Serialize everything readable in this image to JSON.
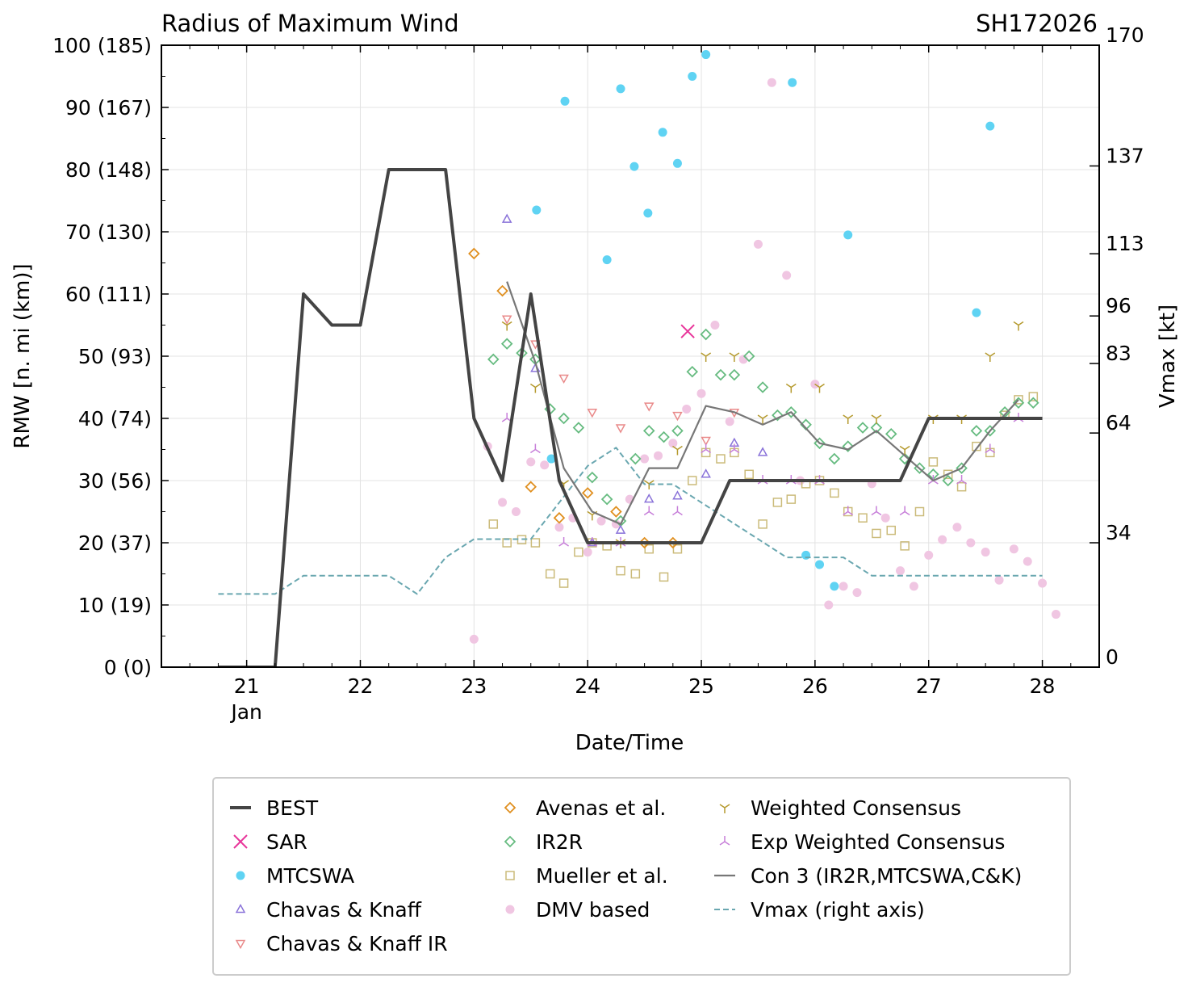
{
  "chart_data": {
    "type": "line",
    "title": "Radius of Maximum Wind",
    "storm_id": "SH172026",
    "xlabel": "Date/Time",
    "ylabel": "RMW [n. mi (km)]",
    "y2label": "Vmax [kt]",
    "xlim": [
      20.25,
      28.5
    ],
    "ylim": [
      0,
      100
    ],
    "y2lim": [
      0,
      170
    ],
    "x_ticks": [
      {
        "value": 21,
        "label": "21",
        "sub": "Jan"
      },
      {
        "value": 22,
        "label": "22",
        "sub": ""
      },
      {
        "value": 23,
        "label": "23",
        "sub": ""
      },
      {
        "value": 24,
        "label": "24",
        "sub": ""
      },
      {
        "value": 25,
        "label": "25",
        "sub": ""
      },
      {
        "value": 26,
        "label": "26",
        "sub": ""
      },
      {
        "value": 27,
        "label": "27",
        "sub": ""
      },
      {
        "value": 28,
        "label": "28",
        "sub": ""
      }
    ],
    "y_ticks": [
      {
        "value": 0,
        "label": "0 (0)"
      },
      {
        "value": 10,
        "label": "10 (19)"
      },
      {
        "value": 20,
        "label": "20 (37)"
      },
      {
        "value": 30,
        "label": "30 (56)"
      },
      {
        "value": 40,
        "label": "40 (74)"
      },
      {
        "value": 50,
        "label": "50 (93)"
      },
      {
        "value": 60,
        "label": "60 (111)"
      },
      {
        "value": 70,
        "label": "70 (130)"
      },
      {
        "value": 80,
        "label": "80 (148)"
      },
      {
        "value": 90,
        "label": "90 (167)"
      },
      {
        "value": 100,
        "label": "100 (185)"
      }
    ],
    "y2_ticks": [
      {
        "value": 0,
        "label": "0"
      },
      {
        "value": 34,
        "label": "34"
      },
      {
        "value": 64,
        "label": "64"
      },
      {
        "value": 83,
        "label": "83"
      },
      {
        "value": 96,
        "label": "96"
      },
      {
        "value": 113,
        "label": "113"
      },
      {
        "value": 137,
        "label": "137"
      },
      {
        "value": 170,
        "label": "170"
      }
    ],
    "series": [
      {
        "name": "BEST",
        "kind": "line",
        "color": "#444444",
        "axis": "left",
        "x": [
          20.75,
          21.0,
          21.25,
          21.5,
          21.75,
          22.0,
          22.25,
          22.5,
          22.75,
          23.0,
          23.25,
          23.5,
          23.75,
          24.0,
          24.25,
          24.5,
          24.75,
          25.0,
          25.25,
          25.5,
          25.75,
          26.0,
          26.25,
          26.5,
          26.75,
          27.0,
          27.25,
          27.5,
          27.75,
          28.0
        ],
        "y": [
          0,
          0,
          0,
          60,
          55,
          55,
          80,
          80,
          80,
          40,
          30,
          60,
          30,
          20,
          20,
          20,
          20,
          20,
          30,
          30,
          30,
          30,
          30,
          30,
          30,
          40,
          40,
          40,
          40,
          40
        ]
      },
      {
        "name": "SAR",
        "kind": "x",
        "color": "#e8359a",
        "axis": "left",
        "x": [
          24.88
        ],
        "y": [
          54
        ]
      },
      {
        "name": "MTCSWA",
        "kind": "dot",
        "color": "#5fd3f3",
        "axis": "left",
        "x": [
          23.55,
          23.68,
          23.8,
          24.17,
          24.29,
          24.41,
          24.53,
          24.66,
          24.79,
          24.92,
          25.04,
          25.8,
          25.92,
          26.04,
          26.17,
          26.29,
          27.42,
          27.54
        ],
        "y": [
          73.5,
          33.5,
          91,
          65.5,
          93,
          80.5,
          73,
          86,
          81,
          95,
          98.5,
          94,
          18,
          16.5,
          13,
          69.5,
          57,
          87
        ]
      },
      {
        "name": "Chavas & Knaff",
        "kind": "tri_up",
        "color": "#8a73d9",
        "axis": "left",
        "x": [
          23.29,
          23.54,
          24.04,
          24.29,
          24.54,
          24.79,
          25.04,
          25.29,
          25.54
        ],
        "y": [
          72,
          48,
          20,
          22,
          27,
          27.5,
          31,
          36,
          34.5
        ]
      },
      {
        "name": "Chavas & Knaff IR",
        "kind": "tri_down",
        "color": "#e98a8a",
        "axis": "left",
        "x": [
          23.29,
          23.54,
          23.79,
          24.04,
          24.29,
          24.54,
          24.79,
          25.04,
          25.29
        ],
        "y": [
          56,
          52,
          46.5,
          41,
          38.5,
          42,
          40.5,
          36.5,
          41
        ]
      },
      {
        "name": "Avenas et al.",
        "kind": "diamond",
        "color": "#e08f1f",
        "axis": "left",
        "x": [
          23.0,
          23.25,
          23.5,
          23.75,
          24.0,
          24.25,
          24.5,
          24.75
        ],
        "y": [
          66.5,
          60.5,
          29,
          24,
          28,
          25,
          20,
          20
        ]
      },
      {
        "name": "IR2R",
        "kind": "diamond",
        "color": "#66bb80",
        "axis": "left",
        "x": [
          23.17,
          23.29,
          23.42,
          23.54,
          23.67,
          23.79,
          23.92,
          24.04,
          24.17,
          24.29,
          24.42,
          24.54,
          24.67,
          24.79,
          24.92,
          25.04,
          25.17,
          25.29,
          25.42,
          25.54,
          25.67,
          25.79,
          25.92,
          26.04,
          26.17,
          26.29,
          26.42,
          26.54,
          26.67,
          26.79,
          26.92,
          27.04,
          27.17,
          27.29,
          27.42,
          27.54,
          27.67,
          27.79,
          27.92
        ],
        "y": [
          49.5,
          52,
          50.5,
          49.5,
          41.5,
          40,
          38.5,
          30.5,
          27,
          23.5,
          33.5,
          38,
          37,
          38,
          47.5,
          53.5,
          47,
          47,
          50,
          45,
          40.5,
          41,
          39,
          36,
          33.5,
          35.5,
          38.5,
          38.5,
          37.5,
          33.5,
          32,
          31,
          30,
          32,
          38,
          38,
          41,
          42.5,
          42.5
        ]
      },
      {
        "name": "Mueller et al.",
        "kind": "square",
        "color": "#cbbb7a",
        "axis": "left",
        "x": [
          23.17,
          23.29,
          23.42,
          23.54,
          23.67,
          23.79,
          23.92,
          24.04,
          24.17,
          24.29,
          24.42,
          24.54,
          24.67,
          24.79,
          24.92,
          25.04,
          25.17,
          25.29,
          25.42,
          25.54,
          25.67,
          25.79,
          25.92,
          26.04,
          26.17,
          26.29,
          26.42,
          26.54,
          26.67,
          26.79,
          26.92,
          27.04,
          27.17,
          27.29,
          27.42,
          27.54,
          27.67,
          27.79,
          27.92
        ],
        "y": [
          23,
          20,
          20.5,
          20,
          15,
          13.5,
          18.5,
          20,
          19.5,
          15.5,
          15,
          19,
          14.5,
          19,
          30,
          34.5,
          33.5,
          34.5,
          31,
          23,
          26.5,
          27,
          29.5,
          30,
          28,
          25,
          24,
          21.5,
          22,
          19.5,
          25,
          33,
          31,
          29,
          35.5,
          34.5,
          40.5,
          43,
          43.5
        ]
      },
      {
        "name": "DMV based",
        "kind": "dot",
        "color": "#f0c6e2",
        "axis": "left",
        "x": [
          23.0,
          23.12,
          23.25,
          23.37,
          23.5,
          23.62,
          23.75,
          23.87,
          24.0,
          24.12,
          24.25,
          24.37,
          24.5,
          24.62,
          24.75,
          24.87,
          25.0,
          25.12,
          25.25,
          25.37,
          25.5,
          25.62,
          25.75,
          25.87,
          26.0,
          26.12,
          26.25,
          26.37,
          26.5,
          26.62,
          26.75,
          26.87,
          27.0,
          27.12,
          27.25,
          27.37,
          27.5,
          27.62,
          27.75,
          27.87,
          28.0,
          28.12
        ],
        "y": [
          4.5,
          35.5,
          26.5,
          25,
          33,
          32.5,
          22.5,
          24,
          18.5,
          23.5,
          23,
          27,
          33.5,
          34,
          36,
          41.5,
          44,
          55,
          39.5,
          49.5,
          68,
          94,
          63,
          30,
          45.5,
          10,
          13,
          12,
          29.5,
          24,
          15.5,
          13,
          18,
          20.5,
          22.5,
          20,
          18.5,
          14,
          19,
          17,
          13.5,
          8.5
        ]
      },
      {
        "name": "Weighted Consensus",
        "kind": "tri_y_down",
        "color": "#b59a2e",
        "axis": "left",
        "x": [
          23.29,
          23.54,
          23.79,
          24.04,
          24.29,
          24.54,
          24.79,
          25.04,
          25.29,
          25.54,
          25.79,
          26.04,
          26.29,
          26.54,
          26.79,
          27.04,
          27.29,
          27.54,
          27.79
        ],
        "y": [
          55,
          45,
          29.5,
          24.5,
          20,
          29.5,
          35,
          50,
          50,
          40,
          45,
          45,
          40,
          40,
          35,
          40,
          40,
          50,
          55
        ]
      },
      {
        "name": "Exp Weighted Consensus",
        "kind": "tri_y_up",
        "color": "#c77fd9",
        "axis": "left",
        "x": [
          23.29,
          23.54,
          23.79,
          24.04,
          24.29,
          24.54,
          24.79,
          25.04,
          25.29,
          25.54,
          25.79,
          26.04,
          26.29,
          26.54,
          26.79,
          27.04,
          27.29,
          27.54,
          27.79
        ],
        "y": [
          40,
          35,
          20,
          20,
          20,
          25,
          25,
          35,
          35,
          30,
          30,
          30,
          25,
          25,
          25,
          30,
          30,
          35,
          40
        ]
      },
      {
        "name": "Con 3 (IR2R,MTCSWA,C&K)",
        "kind": "line",
        "color": "#777777",
        "axis": "left",
        "x": [
          23.29,
          23.54,
          23.79,
          24.04,
          24.29,
          24.54,
          24.79,
          25.04,
          25.29,
          25.54,
          25.79,
          26.04,
          26.29,
          26.54,
          26.79,
          27.04,
          27.29,
          27.54,
          27.79
        ],
        "y": [
          62,
          49,
          32,
          25,
          23,
          32,
          32,
          42,
          41,
          39,
          41,
          36,
          35,
          38,
          34,
          30,
          32,
          38,
          43
        ]
      },
      {
        "name": "Vmax (right axis)",
        "kind": "dashed",
        "color": "#6aa7b0",
        "axis": "right",
        "x": [
          20.75,
          21.0,
          21.25,
          21.5,
          21.75,
          22.0,
          22.25,
          22.5,
          22.75,
          23.0,
          23.25,
          23.5,
          23.75,
          24.0,
          24.25,
          24.5,
          24.75,
          25.0,
          25.25,
          25.5,
          25.75,
          26.0,
          26.25,
          26.5,
          26.75,
          27.0,
          27.25,
          27.5,
          27.75,
          28.0
        ],
        "y": [
          20,
          20,
          20,
          25,
          25,
          25,
          25,
          20,
          30,
          35,
          35,
          35,
          45,
          55,
          60,
          50,
          50,
          45,
          40,
          35,
          30,
          30,
          30,
          25,
          25,
          25,
          25,
          25,
          25,
          25
        ]
      }
    ]
  }
}
